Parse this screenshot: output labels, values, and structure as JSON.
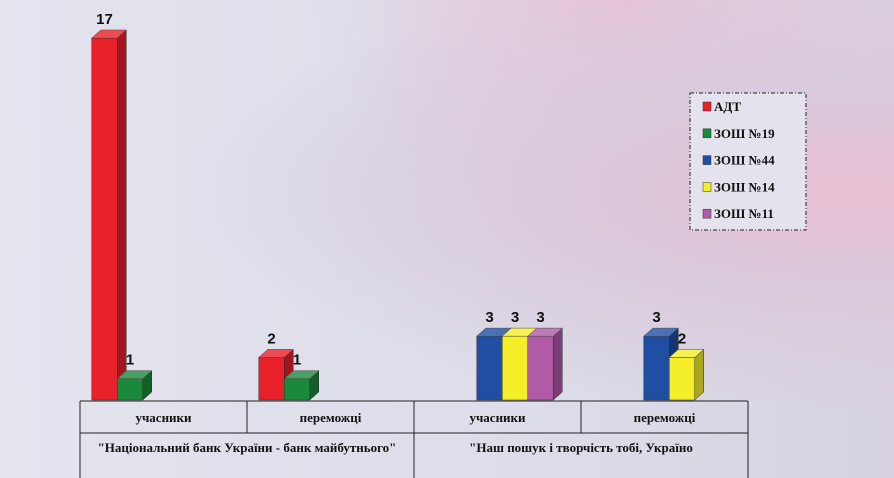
{
  "chart_data": {
    "type": "bar3d",
    "group_labels": [
      "\"Національний банк України - банк майбутнього\"",
      "\"Наш пошук і творчість тобі, Україно"
    ],
    "categories": [
      "учасники",
      "переможці",
      "учасники",
      "переможці"
    ],
    "series": [
      {
        "name": "АДТ",
        "color": "#e8202a",
        "values": [
          17,
          2,
          null,
          null
        ]
      },
      {
        "name": "ЗОШ №19",
        "color": "#1a8a3a",
        "values": [
          1,
          1,
          null,
          null
        ]
      },
      {
        "name": "ЗОШ №44",
        "color": "#1f4ea3",
        "values": [
          null,
          null,
          3,
          3
        ]
      },
      {
        "name": "ЗОШ №14",
        "color": "#f5ef2a",
        "values": [
          null,
          null,
          3,
          2
        ]
      },
      {
        "name": "ЗОШ №11",
        "color": "#b05aa8",
        "values": [
          null,
          null,
          3,
          null
        ]
      }
    ],
    "ylim": [
      0,
      17
    ]
  }
}
